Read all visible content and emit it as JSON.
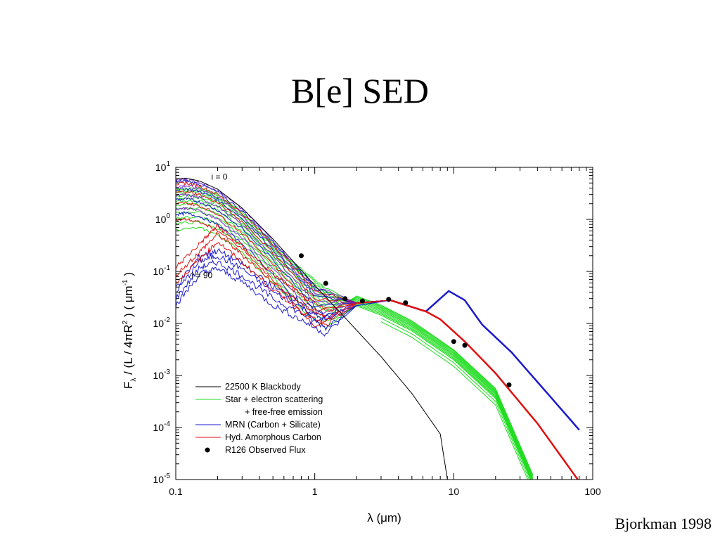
{
  "slide": {
    "title": "B[e] SED",
    "credit": "Bjorkman 1998"
  },
  "chart_data": {
    "type": "line",
    "xscale": "log",
    "yscale": "log",
    "xlim": [
      0.1,
      100
    ],
    "ylim": [
      1e-05,
      10
    ],
    "xlabel": "λ (μm)",
    "ylabel_parts": [
      "F",
      "λ",
      " / (L / 4πR",
      "2",
      " )   ( μm",
      "-1",
      " )"
    ],
    "x_ticks": [
      {
        "value": 0.1,
        "label": "0.1"
      },
      {
        "value": 1,
        "label": "1"
      },
      {
        "value": 10,
        "label": "10"
      },
      {
        "value": 100,
        "label": "100"
      }
    ],
    "y_ticks": [
      {
        "value": 10,
        "base": "10",
        "exp": "1"
      },
      {
        "value": 1,
        "base": "10",
        "exp": "0"
      },
      {
        "value": 0.1,
        "base": "10",
        "exp": "-1"
      },
      {
        "value": 0.01,
        "base": "10",
        "exp": "-2"
      },
      {
        "value": 0.001,
        "base": "10",
        "exp": "-3"
      },
      {
        "value": 0.0001,
        "base": "10",
        "exp": "-4"
      },
      {
        "value": 1e-05,
        "base": "10",
        "exp": "-5"
      }
    ],
    "annotations": [
      {
        "text": "i = 0",
        "x": 0.18,
        "y": 5.8
      },
      {
        "text": "i = 90",
        "x": 0.13,
        "y": 0.074
      }
    ],
    "legend": {
      "position": "bottom-left",
      "entries": [
        {
          "label": "22500 K Blackbody",
          "color": "#000000",
          "marker": "line"
        },
        {
          "label": "Star + electron scattering",
          "label2": "+ free-free emission",
          "color": "#22dd22",
          "marker": "line"
        },
        {
          "label": "MRN (Carbon + Silicate)",
          "color": "#1a1acc",
          "marker": "line"
        },
        {
          "label": "Hyd. Amorphous Carbon",
          "color": "#e01010",
          "marker": "line"
        },
        {
          "label": "R126 Observed Flux",
          "color": "#000000",
          "marker": "dot"
        }
      ]
    },
    "series": [
      {
        "name": "22500 K Blackbody",
        "color": "#000000",
        "x": [
          0.1,
          0.12,
          0.15,
          0.2,
          0.3,
          0.5,
          0.8,
          1.0,
          1.5,
          2,
          3,
          5,
          8,
          9
        ],
        "y": [
          6.0,
          6.2,
          5.4,
          3.8,
          1.65,
          0.42,
          0.105,
          0.054,
          0.017,
          0.0074,
          0.0023,
          0.00045,
          7.5e-05,
          1e-05
        ]
      },
      {
        "name": "Star + electron scattering + free-free emission",
        "color": "#22dd22",
        "x": [
          0.1,
          0.15,
          0.2,
          0.3,
          0.5,
          0.8,
          1.2,
          2,
          3,
          5,
          10,
          20,
          37
        ],
        "y": [
          3.8,
          4.0,
          3.0,
          1.4,
          0.35,
          0.11,
          0.048,
          0.027,
          0.018,
          0.009,
          0.0025,
          0.00045,
          1e-05
        ]
      },
      {
        "name": "MRN (Carbon + Silicate)",
        "color": "#1a1acc",
        "x": [
          0.1,
          0.15,
          0.2,
          0.3,
          0.5,
          0.8,
          1.2,
          2,
          3.5,
          6.3,
          9.2,
          12,
          16,
          26,
          80
        ],
        "y": [
          0.05,
          0.2,
          0.25,
          0.14,
          0.05,
          0.026,
          0.014,
          0.022,
          0.028,
          0.017,
          0.042,
          0.028,
          0.0095,
          0.0028,
          9e-05
        ]
      },
      {
        "name": "Hyd. Amorphous Carbon",
        "color": "#e01010",
        "x": [
          0.1,
          0.15,
          0.2,
          0.3,
          0.5,
          0.8,
          1.2,
          2,
          3.5,
          6.3,
          8,
          12,
          20,
          40,
          78
        ],
        "y": [
          0.12,
          0.35,
          0.75,
          0.3,
          0.09,
          0.034,
          0.018,
          0.024,
          0.028,
          0.017,
          0.012,
          0.0045,
          0.0011,
          0.00012,
          1e-05
        ]
      }
    ],
    "observed_flux": [
      {
        "x": 0.8,
        "y": 0.2
      },
      {
        "x": 1.2,
        "y": 0.059
      },
      {
        "x": 1.65,
        "y": 0.03
      },
      {
        "x": 2.2,
        "y": 0.027
      },
      {
        "x": 3.4,
        "y": 0.029
      },
      {
        "x": 4.5,
        "y": 0.025
      },
      {
        "x": 10,
        "y": 0.0045
      },
      {
        "x": 12,
        "y": 0.0038
      },
      {
        "x": 25,
        "y": 0.00066
      }
    ]
  }
}
